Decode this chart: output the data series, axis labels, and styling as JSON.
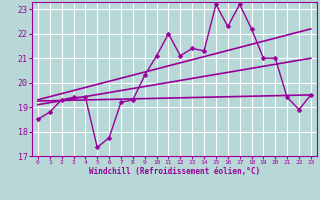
{
  "title": "",
  "xlabel": "Windchill (Refroidissement éolien,°C)",
  "ylabel": "",
  "bg_color": "#b8d8d8",
  "grid_color": "#ffffff",
  "line_color": "#990099",
  "xlim": [
    -0.5,
    23.5
  ],
  "ylim": [
    17,
    23.3
  ],
  "yticks": [
    17,
    18,
    19,
    20,
    21,
    22,
    23
  ],
  "xticks": [
    0,
    1,
    2,
    3,
    4,
    5,
    6,
    7,
    8,
    9,
    10,
    11,
    12,
    13,
    14,
    15,
    16,
    17,
    18,
    19,
    20,
    21,
    22,
    23
  ],
  "series": [
    {
      "x": [
        0,
        1,
        2,
        3,
        4,
        5,
        6,
        7,
        8,
        9,
        10,
        11,
        12,
        13,
        14,
        15,
        16,
        17,
        18,
        19,
        20,
        21,
        22,
        23
      ],
      "y": [
        18.5,
        18.8,
        19.3,
        19.4,
        19.4,
        17.35,
        17.75,
        19.2,
        19.3,
        20.3,
        21.1,
        22.0,
        21.1,
        21.4,
        21.3,
        23.2,
        22.3,
        23.2,
        22.2,
        21.0,
        21.0,
        19.4,
        18.9,
        19.5
      ],
      "color": "#990099",
      "lw": 1.0,
      "marker": "D",
      "ms": 2.5
    },
    {
      "x": [
        0,
        23
      ],
      "y": [
        19.3,
        22.2
      ],
      "color": "#990099",
      "lw": 1.2,
      "marker": null,
      "ms": 0
    },
    {
      "x": [
        0,
        23
      ],
      "y": [
        19.1,
        21.0
      ],
      "color": "#990099",
      "lw": 1.2,
      "marker": null,
      "ms": 0
    },
    {
      "x": [
        0,
        23
      ],
      "y": [
        19.25,
        19.5
      ],
      "color": "#990099",
      "lw": 1.2,
      "marker": null,
      "ms": 0
    }
  ]
}
